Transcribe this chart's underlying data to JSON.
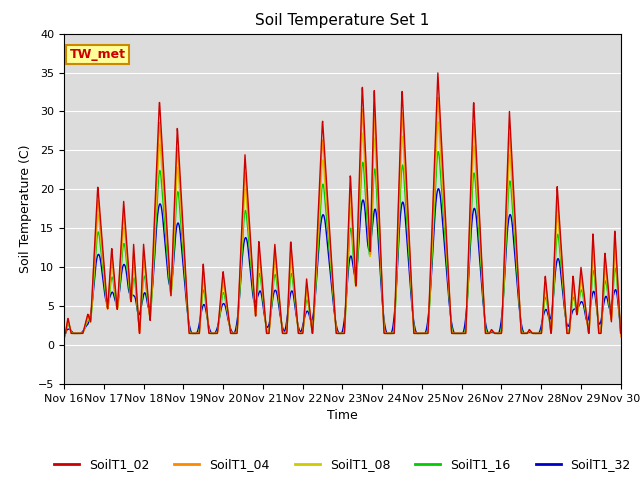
{
  "title": "Soil Temperature Set 1",
  "xlabel": "Time",
  "ylabel": "Soil Temperature (C)",
  "ylim": [
    -5,
    40
  ],
  "xlim": [
    0,
    14
  ],
  "xtick_labels": [
    "Nov 16",
    "Nov 17",
    "Nov 18",
    "Nov 19",
    "Nov 20",
    "Nov 21",
    "Nov 22",
    "Nov 23",
    "Nov 24",
    "Nov 25",
    "Nov 26",
    "Nov 27",
    "Nov 28",
    "Nov 29",
    "Nov 30"
  ],
  "xtick_positions": [
    0,
    1,
    2,
    3,
    4,
    5,
    6,
    7,
    8,
    9,
    10,
    11,
    12,
    13,
    14
  ],
  "series_colors": [
    "#cc0000",
    "#ff8800",
    "#cccc00",
    "#00cc00",
    "#0000cc"
  ],
  "series_labels": [
    "SoilT1_02",
    "SoilT1_04",
    "SoilT1_08",
    "SoilT1_16",
    "SoilT1_32"
  ],
  "annotation_text": "TW_met",
  "annotation_color": "#cc0000",
  "annotation_bg": "#ffff99",
  "annotation_border": "#cc8800",
  "bg_color": "#dcdcdc",
  "title_fontsize": 11,
  "axis_fontsize": 9,
  "tick_fontsize": 8,
  "legend_fontsize": 9,
  "linewidth": 1.0
}
